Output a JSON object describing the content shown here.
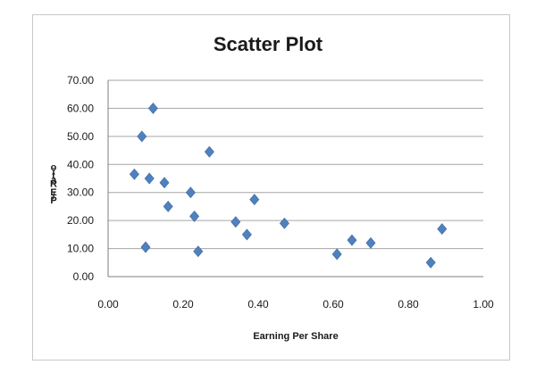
{
  "chart_data": {
    "type": "scatter",
    "title": "Scatter Plot",
    "xlabel": "Earning Per Share",
    "ylabel": "P/E Ratio",
    "xlim": [
      0,
      1
    ],
    "ylim": [
      0,
      70
    ],
    "x_ticks": [
      "0.00",
      "0.20",
      "0.40",
      "0.60",
      "0.80",
      "1.00"
    ],
    "y_ticks": [
      "0.00",
      "10.00",
      "20.00",
      "30.00",
      "40.00",
      "50.00",
      "60.00",
      "70.00"
    ],
    "grid": true,
    "legend": "none",
    "marker": "diamond",
    "color": "#4f81bd",
    "series": [
      {
        "points": [
          {
            "x": 0.07,
            "y": 36.5
          },
          {
            "x": 0.09,
            "y": 50.0
          },
          {
            "x": 0.1,
            "y": 10.5
          },
          {
            "x": 0.11,
            "y": 35.0
          },
          {
            "x": 0.12,
            "y": 60.0
          },
          {
            "x": 0.15,
            "y": 33.5
          },
          {
            "x": 0.16,
            "y": 25.0
          },
          {
            "x": 0.22,
            "y": 30.0
          },
          {
            "x": 0.23,
            "y": 21.5
          },
          {
            "x": 0.24,
            "y": 9.0
          },
          {
            "x": 0.27,
            "y": 44.5
          },
          {
            "x": 0.34,
            "y": 19.5
          },
          {
            "x": 0.37,
            "y": 15.0
          },
          {
            "x": 0.39,
            "y": 27.5
          },
          {
            "x": 0.47,
            "y": 19.0
          },
          {
            "x": 0.61,
            "y": 8.0
          },
          {
            "x": 0.65,
            "y": 13.0
          },
          {
            "x": 0.7,
            "y": 12.0
          },
          {
            "x": 0.86,
            "y": 5.0
          },
          {
            "x": 0.89,
            "y": 17.0
          }
        ]
      }
    ]
  }
}
